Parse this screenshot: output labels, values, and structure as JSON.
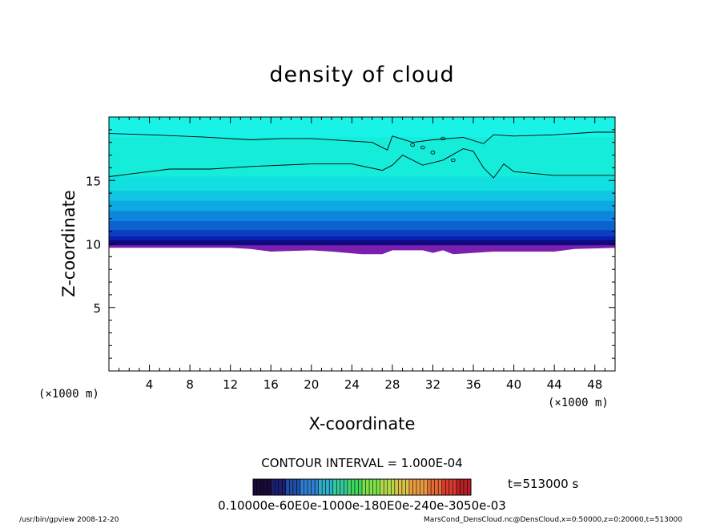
{
  "chart_data": {
    "type": "heatmap",
    "title": "density of cloud",
    "xlabel": "X-coordinate",
    "ylabel": "Z-coordinate",
    "x_unit": "(×1000 m)",
    "z_unit": "(×1000 m)",
    "xlim": [
      0,
      50
    ],
    "ylim": [
      0,
      20
    ],
    "x_ticks": [
      "4",
      "8",
      "12",
      "16",
      "20",
      "24",
      "28",
      "32",
      "36",
      "40",
      "44",
      "48"
    ],
    "y_ticks": [
      "5",
      "10",
      "15"
    ],
    "contour_interval_label": "CONTOUR INTERVAL = 1.000E-04",
    "time_label": "t=513000 s",
    "colorbar_labels_text": "0.10000e-60E0e-1000e-180E0e-240e-3050e-03",
    "colorbar_colors": [
      "#1a0a3a",
      "#1b1f6e",
      "#1f4fa8",
      "#2e7fd0",
      "#2fb0c8",
      "#33c89a",
      "#3fd55e",
      "#7ee04a",
      "#b4d84a",
      "#d8c24a",
      "#e89a40",
      "#e66a36",
      "#d83a2e",
      "#b81f25"
    ],
    "field_bands": [
      {
        "z_top": 20.0,
        "z_bottom": 18.4,
        "color": "#19f2e6"
      },
      {
        "z_top": 18.4,
        "z_bottom": 15.3,
        "color": "#15ecd9"
      },
      {
        "z_top": 15.3,
        "z_bottom": 14.2,
        "color": "#12dfe0"
      },
      {
        "z_top": 14.2,
        "z_bottom": 13.4,
        "color": "#10c6e2"
      },
      {
        "z_top": 13.4,
        "z_bottom": 12.6,
        "color": "#0ea9e0"
      },
      {
        "z_top": 12.6,
        "z_bottom": 11.8,
        "color": "#0c86da"
      },
      {
        "z_top": 11.8,
        "z_bottom": 11.1,
        "color": "#0b63d0"
      },
      {
        "z_top": 11.1,
        "z_bottom": 10.6,
        "color": "#0a3fc2"
      },
      {
        "z_top": 10.6,
        "z_bottom": 10.2,
        "color": "#0a1fb0"
      },
      {
        "z_top": 10.2,
        "z_bottom": 9.8,
        "color": "#120c94"
      }
    ],
    "bottom_layer": {
      "color": "#7a1fae",
      "z": 9.8
    },
    "footer_left": "/usr/bin/gpview   2008-12-20",
    "footer_right": "MarsCond_DensCloud.nc@DensCloud,x=0:50000,z=0:20000,t=513000"
  }
}
